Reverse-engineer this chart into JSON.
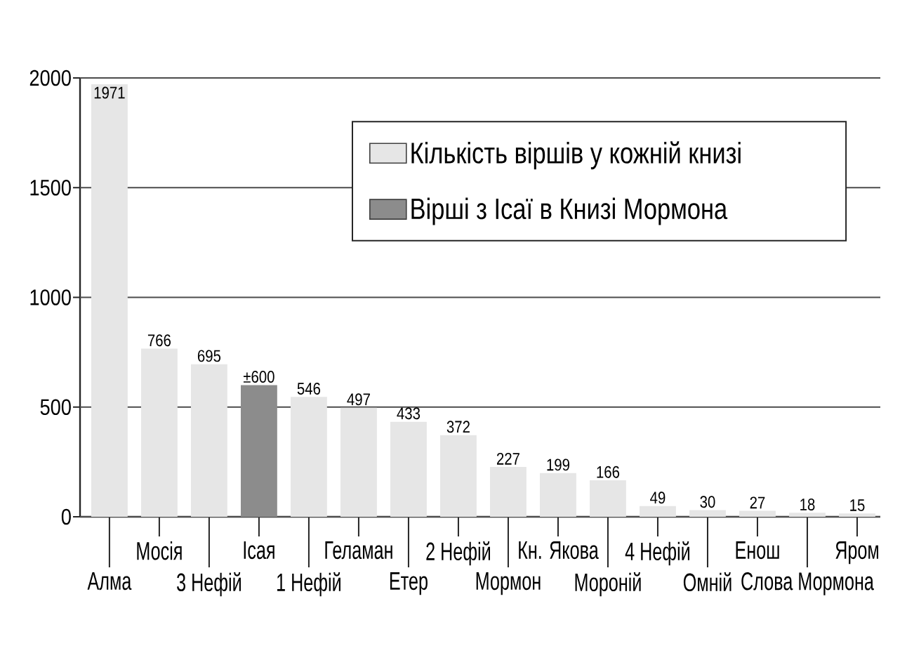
{
  "chart_data": {
    "type": "bar",
    "categories": [
      "Алма",
      "Мосія",
      "3 Нефій",
      "Ісая",
      "1 Нефій",
      "Геламан",
      "Етер",
      "2 Нефій",
      "Мормон",
      "Кн. Якова",
      "Мороній",
      "4 Нефій",
      "Омній",
      "Енош",
      "Слова Мормона",
      "Яром"
    ],
    "series": [
      {
        "name": "Кількість віршів у кожній книзі",
        "color": "#e6e6e6",
        "values": [
          1971,
          766,
          695,
          null,
          546,
          497,
          433,
          372,
          227,
          199,
          166,
          49,
          30,
          27,
          18,
          15
        ],
        "value_labels": [
          "1971",
          "766",
          "695",
          null,
          "546",
          "497",
          "433",
          "372",
          "227",
          "199",
          "166",
          "49",
          "30",
          "27",
          "18",
          "15"
        ]
      },
      {
        "name": "Вірші з Ісаї в Книзі Мормона",
        "color": "#8c8c8c",
        "values": [
          null,
          null,
          null,
          600,
          null,
          null,
          null,
          null,
          null,
          null,
          null,
          null,
          null,
          null,
          null,
          null
        ],
        "value_labels": [
          null,
          null,
          null,
          "±600",
          null,
          null,
          null,
          null,
          null,
          null,
          null,
          null,
          null,
          null,
          null,
          null
        ]
      }
    ],
    "ylim": [
      0,
      2000
    ],
    "yticks": [
      0,
      500,
      1000,
      1500,
      2000
    ],
    "grid": "y",
    "legend": "top right"
  }
}
